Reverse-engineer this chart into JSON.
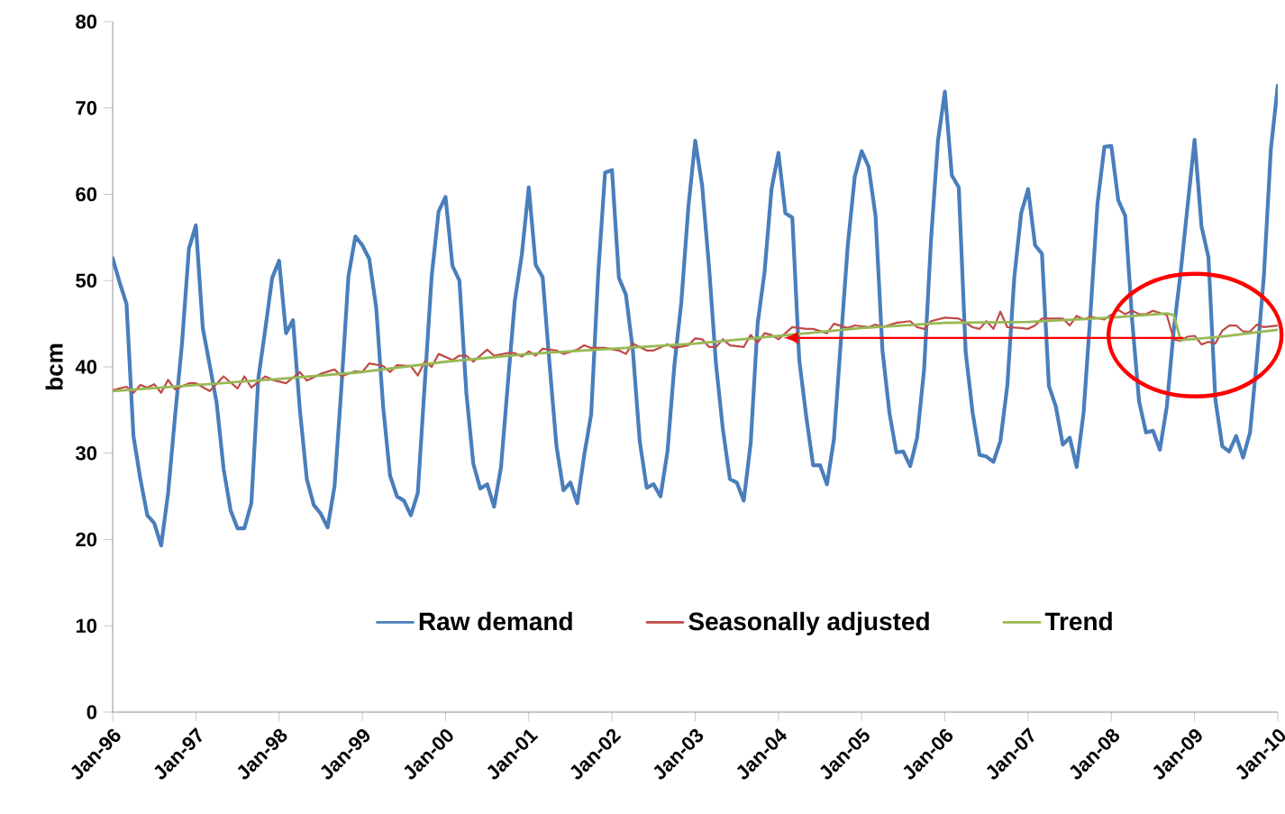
{
  "chart_data": {
    "type": "line",
    "ylabel": "bcm",
    "x": [
      "1996-01",
      "1996-02",
      "1996-03",
      "1996-04",
      "1996-05",
      "1996-06",
      "1996-07",
      "1996-08",
      "1996-09",
      "1996-10",
      "1996-11",
      "1996-12",
      "1997-01",
      "1997-02",
      "1997-03",
      "1997-04",
      "1997-05",
      "1997-06",
      "1997-07",
      "1997-08",
      "1997-09",
      "1997-10",
      "1997-11",
      "1997-12",
      "1998-01",
      "1998-02",
      "1998-03",
      "1998-04",
      "1998-05",
      "1998-06",
      "1998-07",
      "1998-08",
      "1998-09",
      "1998-10",
      "1998-11",
      "1998-12",
      "1999-01",
      "1999-02",
      "1999-03",
      "1999-04",
      "1999-05",
      "1999-06",
      "1999-07",
      "1999-08",
      "1999-09",
      "1999-10",
      "1999-11",
      "1999-12",
      "2000-01",
      "2000-02",
      "2000-03",
      "2000-04",
      "2000-05",
      "2000-06",
      "2000-07",
      "2000-08",
      "2000-09",
      "2000-10",
      "2000-11",
      "2000-12",
      "2001-01",
      "2001-02",
      "2001-03",
      "2001-04",
      "2001-05",
      "2001-06",
      "2001-07",
      "2001-08",
      "2001-09",
      "2001-10",
      "2001-11",
      "2001-12",
      "2002-01",
      "2002-02",
      "2002-03",
      "2002-04",
      "2002-05",
      "2002-06",
      "2002-07",
      "2002-08",
      "2002-09",
      "2002-10",
      "2002-11",
      "2002-12",
      "2003-01",
      "2003-02",
      "2003-03",
      "2003-04",
      "2003-05",
      "2003-06",
      "2003-07",
      "2003-08",
      "2003-09",
      "2003-10",
      "2003-11",
      "2003-12",
      "2004-01",
      "2004-02",
      "2004-03",
      "2004-04",
      "2004-05",
      "2004-06",
      "2004-07",
      "2004-08",
      "2004-09",
      "2004-10",
      "2004-11",
      "2004-12",
      "2005-01",
      "2005-02",
      "2005-03",
      "2005-04",
      "2005-05",
      "2005-06",
      "2005-07",
      "2005-08",
      "2005-09",
      "2005-10",
      "2005-11",
      "2005-12",
      "2006-01",
      "2006-02",
      "2006-03",
      "2006-04",
      "2006-05",
      "2006-06",
      "2006-07",
      "2006-08",
      "2006-09",
      "2006-10",
      "2006-11",
      "2006-12",
      "2007-01",
      "2007-02",
      "2007-03",
      "2007-04",
      "2007-05",
      "2007-06",
      "2007-07",
      "2007-08",
      "2007-09",
      "2007-10",
      "2007-11",
      "2007-12",
      "2008-01",
      "2008-02",
      "2008-03",
      "2008-04",
      "2008-05",
      "2008-06",
      "2008-07",
      "2008-08",
      "2008-09",
      "2008-10",
      "2008-11",
      "2008-12",
      "2009-01",
      "2009-02",
      "2009-03",
      "2009-04",
      "2009-05",
      "2009-06",
      "2009-07",
      "2009-08",
      "2009-09",
      "2009-10",
      "2009-11",
      "2009-12",
      "2010-01"
    ],
    "series": [
      {
        "name": "Raw demand",
        "color": "#4a7ebb",
        "values": [
          52.6,
          49.8,
          47.3,
          32,
          27,
          22.8,
          21.9,
          19.3,
          25.4,
          34.3,
          42.7,
          53.7,
          56.4,
          44.5,
          40.2,
          35.8,
          28.2,
          23.4,
          21.3,
          21.3,
          24.2,
          38.6,
          44.3,
          50.3,
          52.3,
          43.9,
          45.4,
          35,
          27,
          24,
          23,
          21.4,
          26.2,
          37.8,
          50.5,
          55.1,
          54.1,
          52.5,
          46.9,
          35.4,
          27.4,
          25,
          24.5,
          22.8,
          25.4,
          38,
          50.5,
          58,
          59.7,
          51.7,
          50,
          37,
          28.8,
          25.9,
          26.4,
          23.8,
          28.4,
          38.2,
          47.7,
          53,
          60.8,
          51.8,
          50.4,
          40.3,
          30.8,
          25.7,
          26.6,
          24.2,
          29.8,
          34.5,
          50.6,
          62.5,
          62.8,
          50.3,
          48.4,
          42,
          31.4,
          26,
          26.4,
          25,
          30.2,
          40.2,
          47.5,
          58.4,
          66.2,
          61,
          51.5,
          40.3,
          32.7,
          27,
          26.6,
          24.5,
          31.2,
          45,
          51,
          60.6,
          64.8,
          57.8,
          57.3,
          40.8,
          34.3,
          28.6,
          28.6,
          26.4,
          31.6,
          43,
          54.1,
          62,
          65,
          63.2,
          57.5,
          41.9,
          34.7,
          30.1,
          30.2,
          28.5,
          31.8,
          39.7,
          54.7,
          66.2,
          71.9,
          62.2,
          60.8,
          41.7,
          34.7,
          29.8,
          29.6,
          29,
          31.4,
          37.8,
          50.3,
          57.8,
          60.6,
          54.1,
          53.1,
          37.8,
          35.4,
          31,
          31.8,
          28.4,
          34.7,
          46.3,
          58.9,
          65.5,
          65.6,
          59.3,
          57.5,
          45.4,
          36,
          32.4,
          32.6,
          30.4,
          35.4,
          44.3,
          51,
          58.7,
          66.3,
          56.3,
          52.7,
          36.2,
          30.8,
          30.2,
          32,
          29.5,
          32.4,
          41,
          50.6,
          65.2,
          72.6
        ]
      },
      {
        "name": "Seasonally adjusted",
        "color": "#be4b48",
        "x": [
          "1996-01",
          "1996-03",
          "1996-04",
          "1996-05",
          "1996-06",
          "1996-07",
          "1996-08",
          "1996-09",
          "1996-10",
          "1996-12",
          "1997-01",
          "1997-03",
          "1997-05",
          "1997-07",
          "1997-08",
          "1997-09",
          "1997-11",
          "1997-12",
          "1998-02",
          "1998-04",
          "1998-05",
          "1998-07",
          "1998-09",
          "1998-10",
          "1998-12",
          "1999-01",
          "1999-02",
          "1999-04",
          "1999-05",
          "1999-06",
          "1999-08",
          "1999-09",
          "1999-10",
          "1999-11",
          "1999-12",
          "2000-02",
          "2000-03",
          "2000-04",
          "2000-05",
          "2000-07",
          "2000-08",
          "2000-10",
          "2000-11",
          "2000-12",
          "2001-01",
          "2001-02",
          "2001-03",
          "2001-05",
          "2001-06",
          "2001-08",
          "2001-09",
          "2001-10",
          "2001-12",
          "2002-02",
          "2002-03",
          "2002-04",
          "2002-06",
          "2002-07",
          "2002-09",
          "2002-10",
          "2002-12",
          "2003-01",
          "2003-02",
          "2003-03",
          "2003-04",
          "2003-05",
          "2003-06",
          "2003-08",
          "2003-09",
          "2003-10",
          "2003-11",
          "2003-12",
          "2004-01",
          "2004-03",
          "2004-05",
          "2004-06",
          "2004-08",
          "2004-09",
          "2004-11",
          "2004-12",
          "2005-02",
          "2005-03",
          "2005-04",
          "2005-06",
          "2005-08",
          "2005-09",
          "2005-10",
          "2005-11",
          "2006-01",
          "2006-03",
          "2006-05",
          "2006-06",
          "2006-07",
          "2006-08",
          "2006-09",
          "2006-10",
          "2006-12",
          "2007-01",
          "2007-02",
          "2007-03",
          "2007-06",
          "2007-07",
          "2007-08",
          "2007-09",
          "2007-10",
          "2007-12",
          "2008-02",
          "2008-03",
          "2008-04",
          "2008-05",
          "2008-06",
          "2008-07",
          "2008-09",
          "2008-10",
          "2008-11",
          "2008-12",
          "2009-01",
          "2009-02",
          "2009-03",
          "2009-04",
          "2009-05",
          "2009-06",
          "2009-07",
          "2009-08",
          "2009-09",
          "2009-10",
          "2009-11",
          "2010-01"
        ],
        "values": [
          37.3,
          37.7,
          37.0,
          37.9,
          37.6,
          38.0,
          37.0,
          38.5,
          37.4,
          38.1,
          38.1,
          37.2,
          38.9,
          37.5,
          38.9,
          37.6,
          38.9,
          38.5,
          38.1,
          39.4,
          38.4,
          39.2,
          39.7,
          38.9,
          39.5,
          39.4,
          40.4,
          40.1,
          39.4,
          40.2,
          40.1,
          39.0,
          40.6,
          40.0,
          41.5,
          40.8,
          41.3,
          41.3,
          40.6,
          42.0,
          41.3,
          41.6,
          41.6,
          41.2,
          41.8,
          41.3,
          42.1,
          41.9,
          41.5,
          42.0,
          42.5,
          42.2,
          42.2,
          41.9,
          41.5,
          42.7,
          41.9,
          41.9,
          42.6,
          42.2,
          42.5,
          43.3,
          43.2,
          42.3,
          42.3,
          43.2,
          42.5,
          42.3,
          43.7,
          42.8,
          43.9,
          43.7,
          43.2,
          44.6,
          44.4,
          44.4,
          43.9,
          45.0,
          44.5,
          44.8,
          44.6,
          44.9,
          44.6,
          45.1,
          45.3,
          44.6,
          44.4,
          45.3,
          45.7,
          45.6,
          44.6,
          44.4,
          45.3,
          44.4,
          46.4,
          44.6,
          44.5,
          44.4,
          44.8,
          45.6,
          45.6,
          44.8,
          45.9,
          45.5,
          45.8,
          45.5,
          46.6,
          46.1,
          46.5,
          46.1,
          46.1,
          46.5,
          46.0,
          43.2,
          43.0,
          43.5,
          43.6,
          42.6,
          42.9,
          42.7,
          44.2,
          44.8,
          44.8,
          44.1,
          44.1,
          44.9,
          44.6,
          44.8
        ]
      },
      {
        "name": "Trend",
        "color": "#98b954",
        "x": [
          "1996-01",
          "1997-01",
          "1998-01",
          "1999-01",
          "2000-01",
          "2001-01",
          "2002-01",
          "2003-01",
          "2004-01",
          "2005-01",
          "2006-01",
          "2007-01",
          "2008-01",
          "2008-09",
          "2008-10",
          "2008-11",
          "2009-05",
          "2009-10",
          "2010-01"
        ],
        "values": [
          37.2,
          37.9,
          38.6,
          39.4,
          40.6,
          41.5,
          42.1,
          42.7,
          43.6,
          44.5,
          45.1,
          45.2,
          45.7,
          46.2,
          46.0,
          43.1,
          43.5,
          44.0,
          44.3
        ]
      }
    ],
    "xlim": [
      "1996-01",
      "2010-01"
    ],
    "xticks": [
      {
        "value": "1996-01",
        "label": "Jan-96"
      },
      {
        "value": "1997-01",
        "label": "Jan-97"
      },
      {
        "value": "1998-01",
        "label": "Jan-98"
      },
      {
        "value": "1999-01",
        "label": "Jan-99"
      },
      {
        "value": "2000-01",
        "label": "Jan-00"
      },
      {
        "value": "2001-01",
        "label": "Jan-01"
      },
      {
        "value": "2002-01",
        "label": "Jan-02"
      },
      {
        "value": "2003-01",
        "label": "Jan-03"
      },
      {
        "value": "2004-01",
        "label": "Jan-04"
      },
      {
        "value": "2005-01",
        "label": "Jan-05"
      },
      {
        "value": "2006-01",
        "label": "Jan-06"
      },
      {
        "value": "2007-01",
        "label": "Jan-07"
      },
      {
        "value": "2008-01",
        "label": "Jan-08"
      },
      {
        "value": "2009-01",
        "label": "Jan-09"
      },
      {
        "value": "2010-01",
        "label": "Jan-10"
      }
    ],
    "ylim": [
      0,
      80
    ],
    "yticks": [
      0,
      10,
      20,
      30,
      40,
      50,
      60,
      70,
      80
    ],
    "legend": "bottom",
    "marker": "none",
    "line_style": "solid"
  }
}
